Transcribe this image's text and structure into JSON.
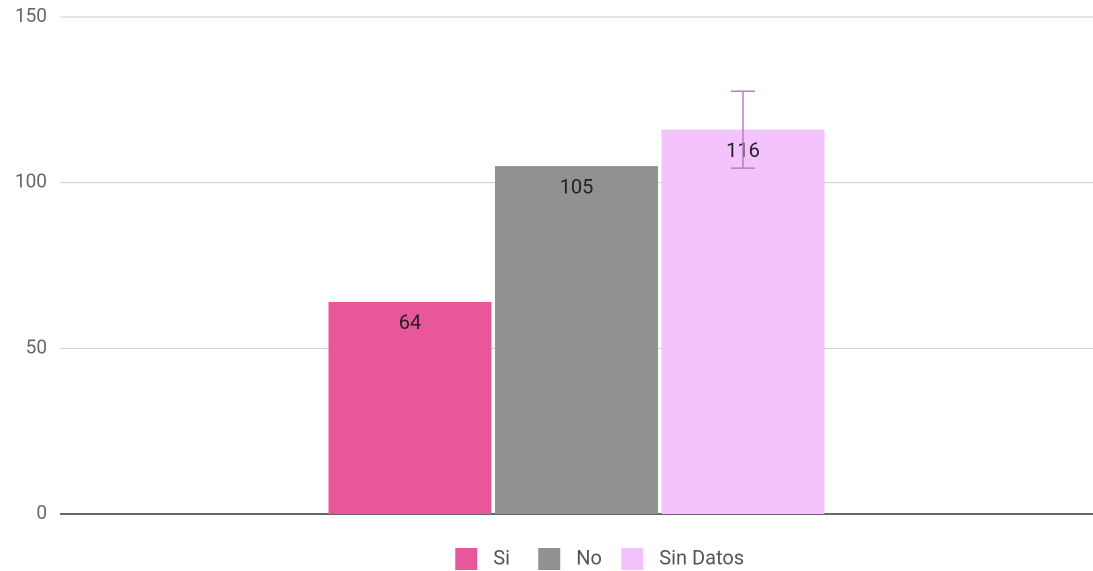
{
  "chart_data": {
    "type": "bar",
    "categories": [
      null
    ],
    "series": [
      {
        "name": "Si",
        "color": "#e8579a",
        "values": [
          64
        ]
      },
      {
        "name": "No",
        "color": "#919191",
        "values": [
          105
        ]
      },
      {
        "name": "Sin Datos",
        "color": "#f4c2fc",
        "values": [
          116
        ],
        "errors": [
          11.6
        ],
        "error_color": "#b77fc0"
      }
    ],
    "ylim": [
      0,
      150
    ],
    "yticks": [
      0,
      50,
      100,
      150
    ],
    "grid": true,
    "legend": "bottom"
  }
}
